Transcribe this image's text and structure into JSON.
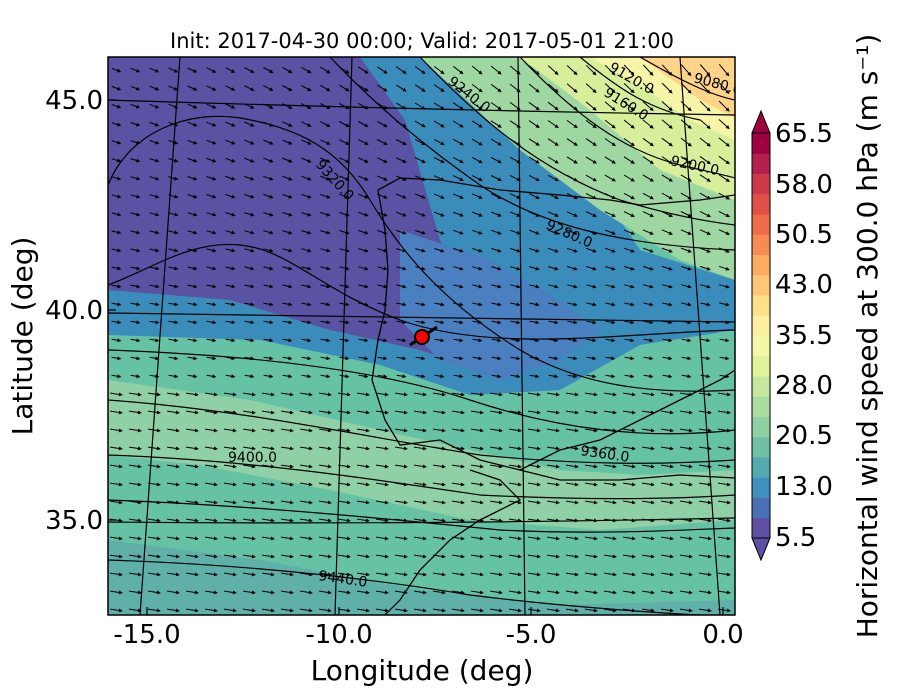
{
  "title": "Init: 2017-04-30 00:00; Valid: 2017-05-01 21:00",
  "xaxis": {
    "label": "Longitude (deg)",
    "ticks": [
      "-15.0",
      "-10.0",
      "-5.0",
      "0.0"
    ]
  },
  "yaxis": {
    "label": "Latitude (deg)",
    "ticks": [
      "45.0",
      "40.0",
      "35.0"
    ]
  },
  "colorbar": {
    "label": "Horizontal wind speed at 300.0 hPa (m s⁻¹)",
    "ticks": [
      "65.5",
      "58.0",
      "50.5",
      "43.0",
      "35.5",
      "28.0",
      "20.5",
      "13.0",
      "5.5"
    ]
  },
  "contour_labels": [
    "9120.0",
    "9080.0",
    "9240.0",
    "9160.0",
    "9200.0",
    "9320.0",
    "9280.0",
    "9400.0",
    "9360.0",
    "9440.0"
  ],
  "chart_data": {
    "type": "heatmap",
    "title": "Init: 2017-04-30 00:00; Valid: 2017-05-01 21:00",
    "xlabel": "Longitude (deg)",
    "ylabel": "Latitude (deg)",
    "xlim": [
      -16,
      0.3
    ],
    "ylim": [
      32.8,
      46.3
    ],
    "color_scale": {
      "min": 5.5,
      "max": 65.5,
      "colormap": "Spectral_r",
      "extend": "both"
    },
    "contour_field": "geopotential height at 300 hPa",
    "contour_levels": [
      9080,
      9120,
      9160,
      9200,
      9240,
      9280,
      9320,
      9360,
      9400,
      9440
    ],
    "marker": {
      "lon": -7.7,
      "lat": 39.4,
      "color": "#ff0000"
    }
  }
}
